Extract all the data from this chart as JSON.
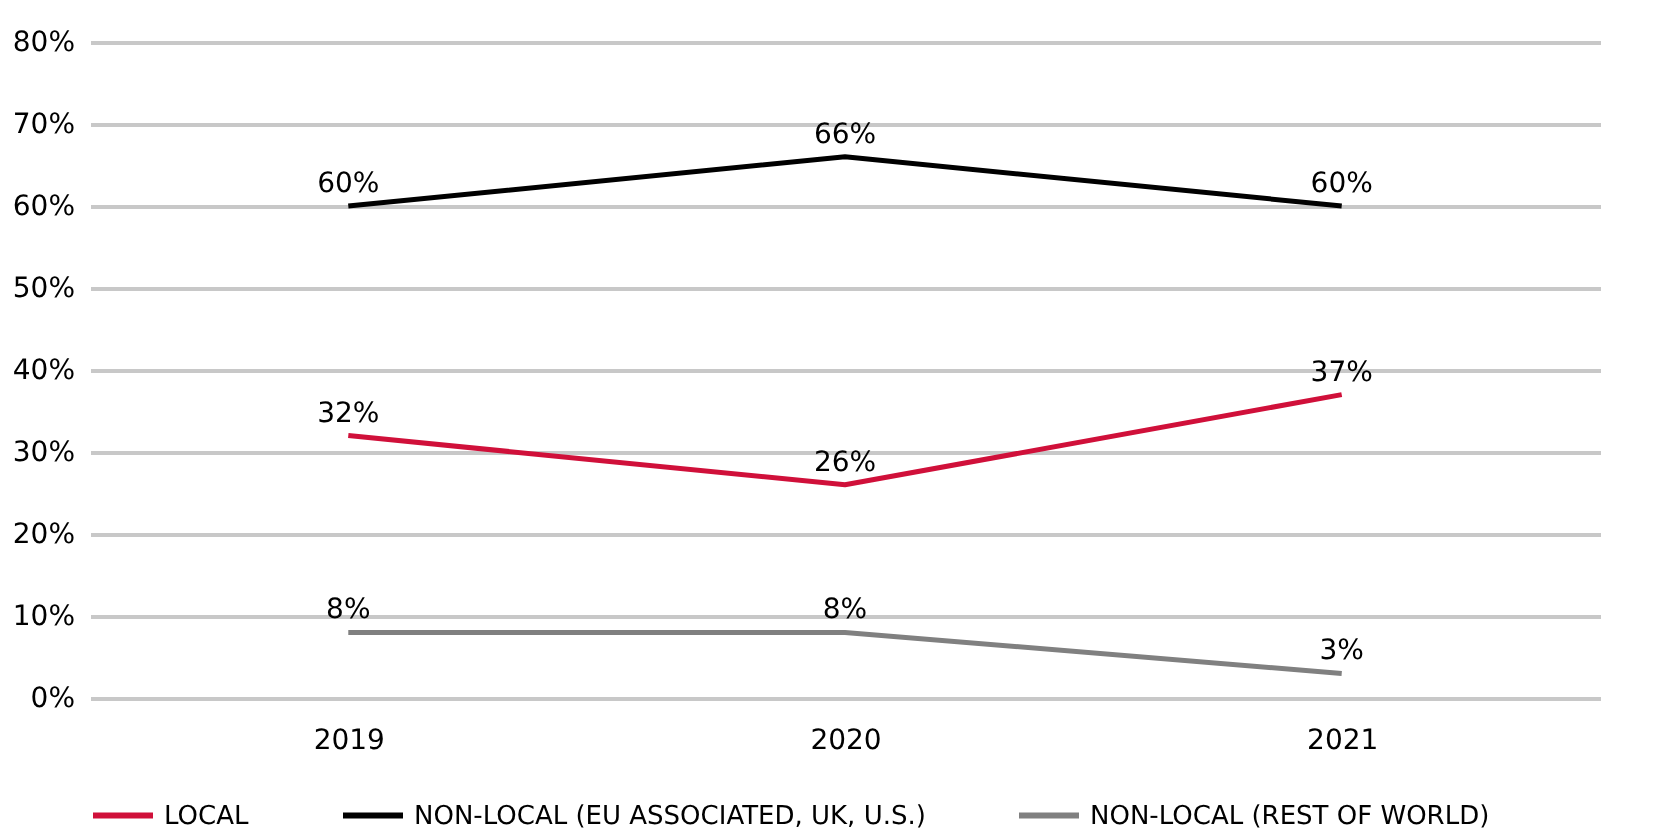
{
  "chart_data": {
    "type": "line",
    "categories": [
      "2019",
      "2020",
      "2021"
    ],
    "series": [
      {
        "name": "LOCAL",
        "color": "#d0103a",
        "values": [
          32,
          26,
          37
        ],
        "value_labels": [
          "32%",
          "26%",
          "37%"
        ]
      },
      {
        "name": "NON-LOCAL (EU ASSOCIATED, UK, U.S.)",
        "color": "#000000",
        "values": [
          60,
          66,
          60
        ],
        "value_labels": [
          "60%",
          "66%",
          "60%"
        ]
      },
      {
        "name": "NON-LOCAL (REST OF WORLD)",
        "color": "#808080",
        "values": [
          8,
          8,
          3
        ],
        "value_labels": [
          "8%",
          "8%",
          "3%"
        ]
      }
    ],
    "ylim": [
      0,
      80
    ],
    "yticks": [
      {
        "value": 0,
        "label": "0%"
      },
      {
        "value": 10,
        "label": "10%"
      },
      {
        "value": 20,
        "label": "20%"
      },
      {
        "value": 30,
        "label": "30%"
      },
      {
        "value": 40,
        "label": "40%"
      },
      {
        "value": 50,
        "label": "50%"
      },
      {
        "value": 60,
        "label": "60%"
      },
      {
        "value": 70,
        "label": "70%"
      },
      {
        "value": 80,
        "label": "80%"
      }
    ],
    "grid": "y",
    "legend": "bottom",
    "marker": "none",
    "line_style": "solid"
  }
}
